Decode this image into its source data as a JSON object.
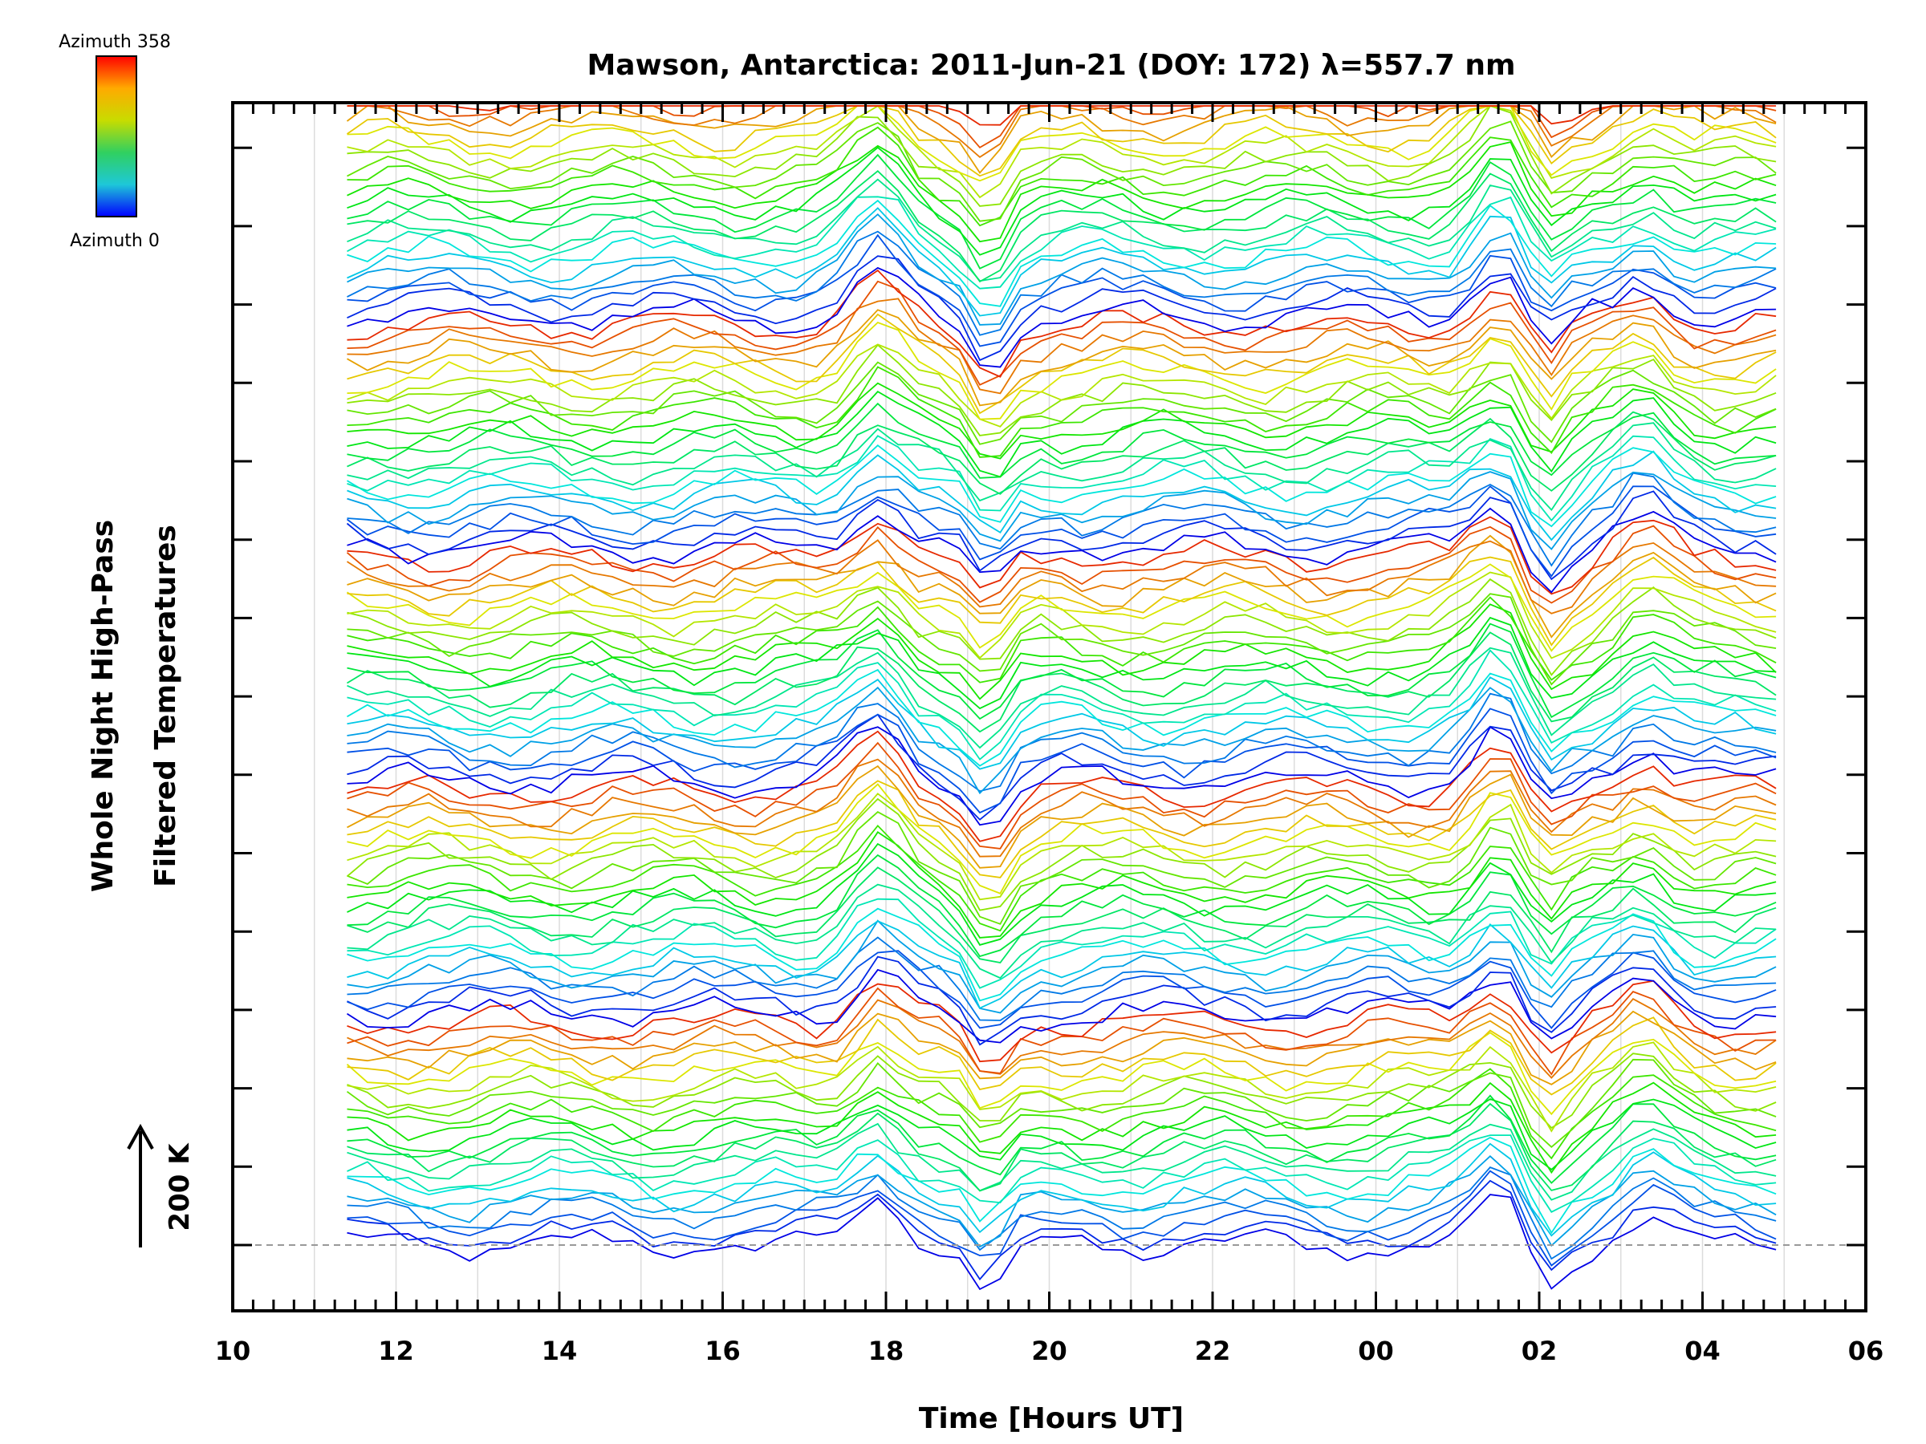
{
  "chart_data": {
    "type": "line",
    "title": "Mawson, Antarctica: 2011-Jun-21 (DOY: 172) λ=557.7 nm",
    "xlabel": "Time [Hours UT]",
    "ylabel_line1": "Whole Night High-Pass",
    "ylabel_line2": "Filtered Temperatures",
    "scale_bar_label": "200 K",
    "colorbar": {
      "top_label": "Azimuth  358",
      "bottom_label": "Azimuth  0",
      "colors": [
        "#ff0000",
        "#ffaa00",
        "#c8dc00",
        "#30d060",
        "#1ec8d8",
        "#0000ff"
      ]
    },
    "x_range_hours": [
      10,
      30
    ],
    "x_data_range_hours": [
      11.4,
      28.8
    ],
    "x_tick_labels": [
      "10",
      "12",
      "14",
      "16",
      "18",
      "20",
      "22",
      "00",
      "02",
      "04",
      "06"
    ],
    "grid": "vertical-every-hour",
    "series_count": 115,
    "azimuth_range": [
      0,
      358
    ],
    "features": [
      {
        "time_hours": 17.9,
        "type": "peak",
        "amplitude": 1.0
      },
      {
        "time_hours": 19.25,
        "type": "trough",
        "amplitude": -1.0
      },
      {
        "time_hours": 25.5,
        "type": "peak",
        "amplitude": 1.0
      },
      {
        "time_hours": 26.1,
        "type": "trough",
        "amplitude": -0.8
      },
      {
        "time_hours": 27.3,
        "type": "peak",
        "amplitude": 0.7
      }
    ]
  }
}
